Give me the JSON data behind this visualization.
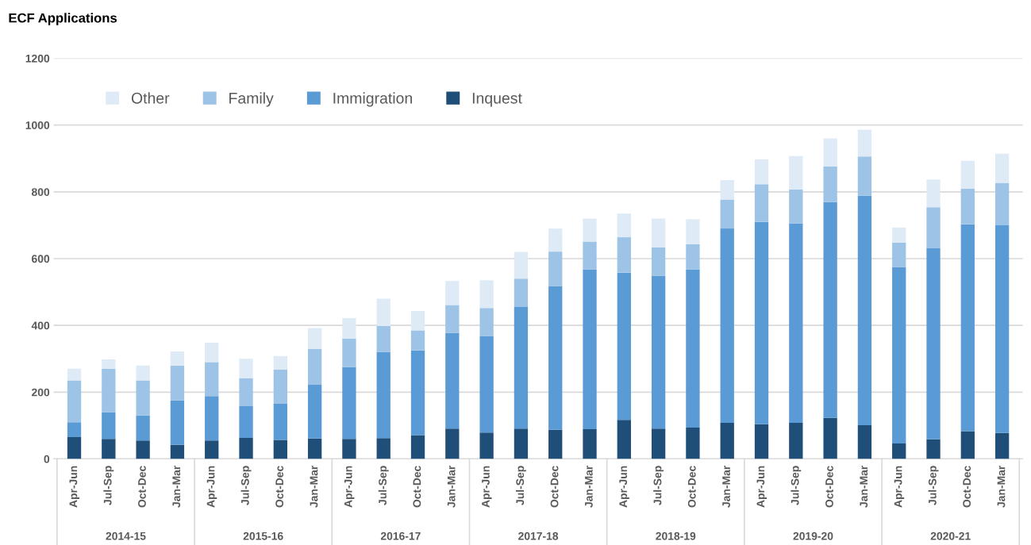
{
  "chart_data": {
    "type": "bar",
    "title": "ECF Applications",
    "stacked": true,
    "categories": [
      "Apr-Jun",
      "Jul-Sep",
      "Oct-Dec",
      "Jan-Mar",
      "Apr-Jun",
      "Jul-Sep",
      "Oct-Dec",
      "Jan-Mar",
      "Apr-Jun",
      "Jul-Sep",
      "Oct-Dec",
      "Jan-Mar",
      "Apr-Jun",
      "Jul-Sep",
      "Oct-Dec",
      "Jan-Mar",
      "Apr-Jun",
      "Jul-Sep",
      "Oct-Dec",
      "Jan-Mar",
      "Apr-Jun",
      "Jul-Sep",
      "Oct-Dec",
      "Jan-Mar",
      "Apr-Jun",
      "Jul-Sep",
      "Oct-Dec",
      "Jan-Mar"
    ],
    "series": [
      {
        "name": "Inquest",
        "color": "#1f4e79",
        "values": [
          65,
          60,
          55,
          42,
          55,
          63,
          57,
          61,
          60,
          62,
          71,
          91,
          79,
          91,
          87,
          89,
          117,
          91,
          94,
          108,
          104,
          108,
          123,
          101,
          46,
          59,
          83,
          78
        ]
      },
      {
        "name": "Immigration",
        "color": "#5b9bd5",
        "values": [
          45,
          80,
          75,
          133,
          133,
          95,
          108,
          161,
          215,
          258,
          254,
          286,
          289,
          364,
          431,
          479,
          441,
          457,
          473,
          582,
          606,
          598,
          646,
          687,
          529,
          572,
          620,
          622
        ]
      },
      {
        "name": "Family",
        "color": "#9dc3e6",
        "values": [
          125,
          130,
          105,
          105,
          102,
          84,
          103,
          108,
          85,
          78,
          60,
          84,
          84,
          85,
          103,
          83,
          106,
          86,
          76,
          87,
          113,
          101,
          107,
          118,
          73,
          123,
          106,
          127
        ]
      },
      {
        "name": "Other",
        "color": "#deebf7",
        "values": [
          35,
          28,
          45,
          42,
          58,
          58,
          40,
          62,
          62,
          82,
          58,
          72,
          83,
          80,
          69,
          69,
          71,
          86,
          75,
          58,
          74,
          100,
          84,
          80,
          45,
          83,
          84,
          87
        ]
      }
    ],
    "annotations": [
      "2014-15",
      "2015-16",
      "2016-17",
      "2017-18",
      "2018-19",
      "2019-20",
      "2020-21"
    ],
    "ylim": [
      0,
      1200
    ],
    "yticks": [
      0,
      200,
      400,
      600,
      800,
      1000,
      1200
    ],
    "grid": "y",
    "legend": "top left"
  }
}
